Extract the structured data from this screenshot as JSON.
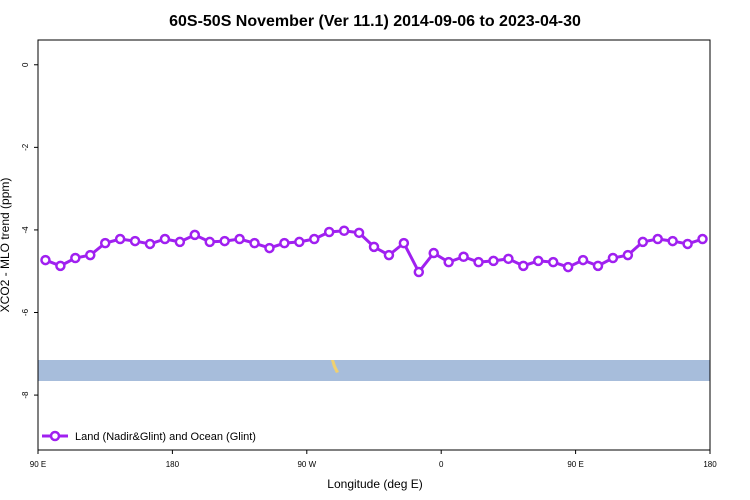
{
  "chart_data": {
    "type": "line",
    "title": "60S-50S November (Ver 11.1)   2014-09-06 to 2023-04-30",
    "x_label": "Longitude (deg E)",
    "y_label": "XCO2 - MLO trend (ppm)",
    "x": [
      95,
      105,
      115,
      125,
      135,
      145,
      155,
      165,
      175,
      185,
      195,
      205,
      215,
      225,
      235,
      245,
      255,
      265,
      275,
      285,
      295,
      305,
      315,
      325,
      335,
      345,
      355,
      365,
      375,
      385,
      395,
      405,
      415,
      425,
      435,
      445,
      455,
      465,
      475,
      485,
      495,
      505,
      515,
      525,
      535
    ],
    "series": [
      {
        "name": "Land (Nadir&Glint) and Ocean (Glint)",
        "color": "#a020f0",
        "values": [
          -4.73,
          -4.87,
          -4.68,
          -4.61,
          -4.32,
          -4.22,
          -4.27,
          -4.34,
          -4.22,
          -4.29,
          -4.12,
          -4.29,
          -4.27,
          -4.22,
          -4.32,
          -4.44,
          -4.32,
          -4.29,
          -4.22,
          -4.05,
          -4.02,
          -4.07,
          -4.41,
          -4.61,
          -4.32,
          -5.02,
          -4.56,
          -4.78,
          -4.65,
          -4.78,
          -4.75,
          -4.7,
          -4.87,
          -4.75,
          -4.78,
          -4.9,
          -4.73,
          -4.87,
          -4.68,
          -4.61,
          -4.29,
          -4.22,
          -4.27,
          -4.34,
          -4.22
        ]
      }
    ],
    "xlim": [
      90,
      540
    ],
    "xticks": [
      {
        "value": 90,
        "label": "90 E"
      },
      180,
      {
        "value": 270,
        "label": "90 W"
      },
      {
        "value": 360,
        "label": "0"
      },
      {
        "value": 450,
        "label": "90 E"
      },
      {
        "value": 540,
        "label": "180"
      }
    ],
    "ylim": [
      -9.33,
      0.6
    ],
    "yticks": [
      0,
      -2,
      -4,
      -6,
      -8
    ],
    "legend": "bottom-left"
  }
}
